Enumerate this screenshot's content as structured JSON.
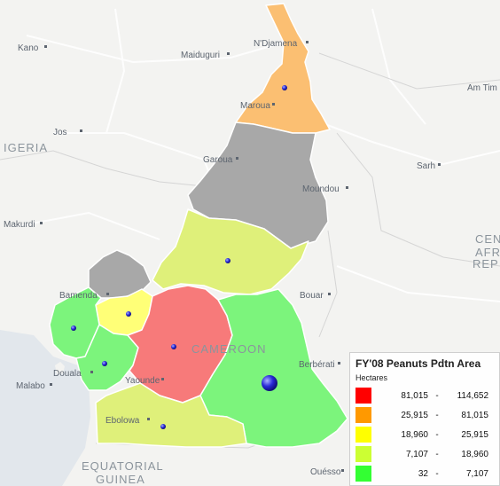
{
  "map": {
    "places": [
      {
        "id": "kano",
        "name": "Kano"
      },
      {
        "id": "maiduguri",
        "name": "Maiduguri"
      },
      {
        "id": "ndjamena",
        "name": "N'Djamena"
      },
      {
        "id": "maroua",
        "name": "Maroua"
      },
      {
        "id": "jos",
        "name": "Jos"
      },
      {
        "id": "garoua",
        "name": "Garoua"
      },
      {
        "id": "moundou",
        "name": "Moundou"
      },
      {
        "id": "sarh",
        "name": "Sarh"
      },
      {
        "id": "amtim",
        "name": "Am Tim"
      },
      {
        "id": "makurdi",
        "name": "Makurdi"
      },
      {
        "id": "bamenda",
        "name": "Bamenda"
      },
      {
        "id": "bouar",
        "name": "Bouar"
      },
      {
        "id": "douala",
        "name": "Douala"
      },
      {
        "id": "malabo",
        "name": "Malabo"
      },
      {
        "id": "yaounde",
        "name": "Yaounde"
      },
      {
        "id": "berberati",
        "name": "Berbérati"
      },
      {
        "id": "ebolowa",
        "name": "Ebolowa"
      },
      {
        "id": "ouesso",
        "name": "Ouésso"
      }
    ],
    "countries": {
      "nigeria": "IGERIA",
      "cameroon": "CAMEROON",
      "equatorial_guinea_1": "EQUATORIAL",
      "equatorial_guinea_2": "GUINEA",
      "car_1": "CEN",
      "car_2": "AFR",
      "car_3": "REP"
    },
    "regions": [
      {
        "id": "far-north",
        "color": "#fbbf72"
      },
      {
        "id": "north",
        "color": "#a8a8a8"
      },
      {
        "id": "adamawa",
        "color": "#dff07a"
      },
      {
        "id": "north-west",
        "color": "#a8a8a8"
      },
      {
        "id": "west",
        "color": "#ffff77"
      },
      {
        "id": "south-west",
        "color": "#7cf47c"
      },
      {
        "id": "littoral",
        "color": "#7cf47c"
      },
      {
        "id": "centre",
        "color": "#f77a7a"
      },
      {
        "id": "east",
        "color": "#7cf47c"
      },
      {
        "id": "south",
        "color": "#dff07a"
      }
    ]
  },
  "legend": {
    "title": "FY'08 Peanuts Pdtn Area",
    "subtitle": "Hectares",
    "classes": [
      {
        "low": "81,015",
        "high": "114,652",
        "color": "#ff0000"
      },
      {
        "low": "25,915",
        "high": "81,015",
        "color": "#ff9900"
      },
      {
        "low": "18,960",
        "high": "25,915",
        "color": "#ffff00"
      },
      {
        "low": "7,107",
        "high": "18,960",
        "color": "#ccff33"
      },
      {
        "low": "32",
        "high": "7,107",
        "color": "#33ff33"
      }
    ]
  }
}
